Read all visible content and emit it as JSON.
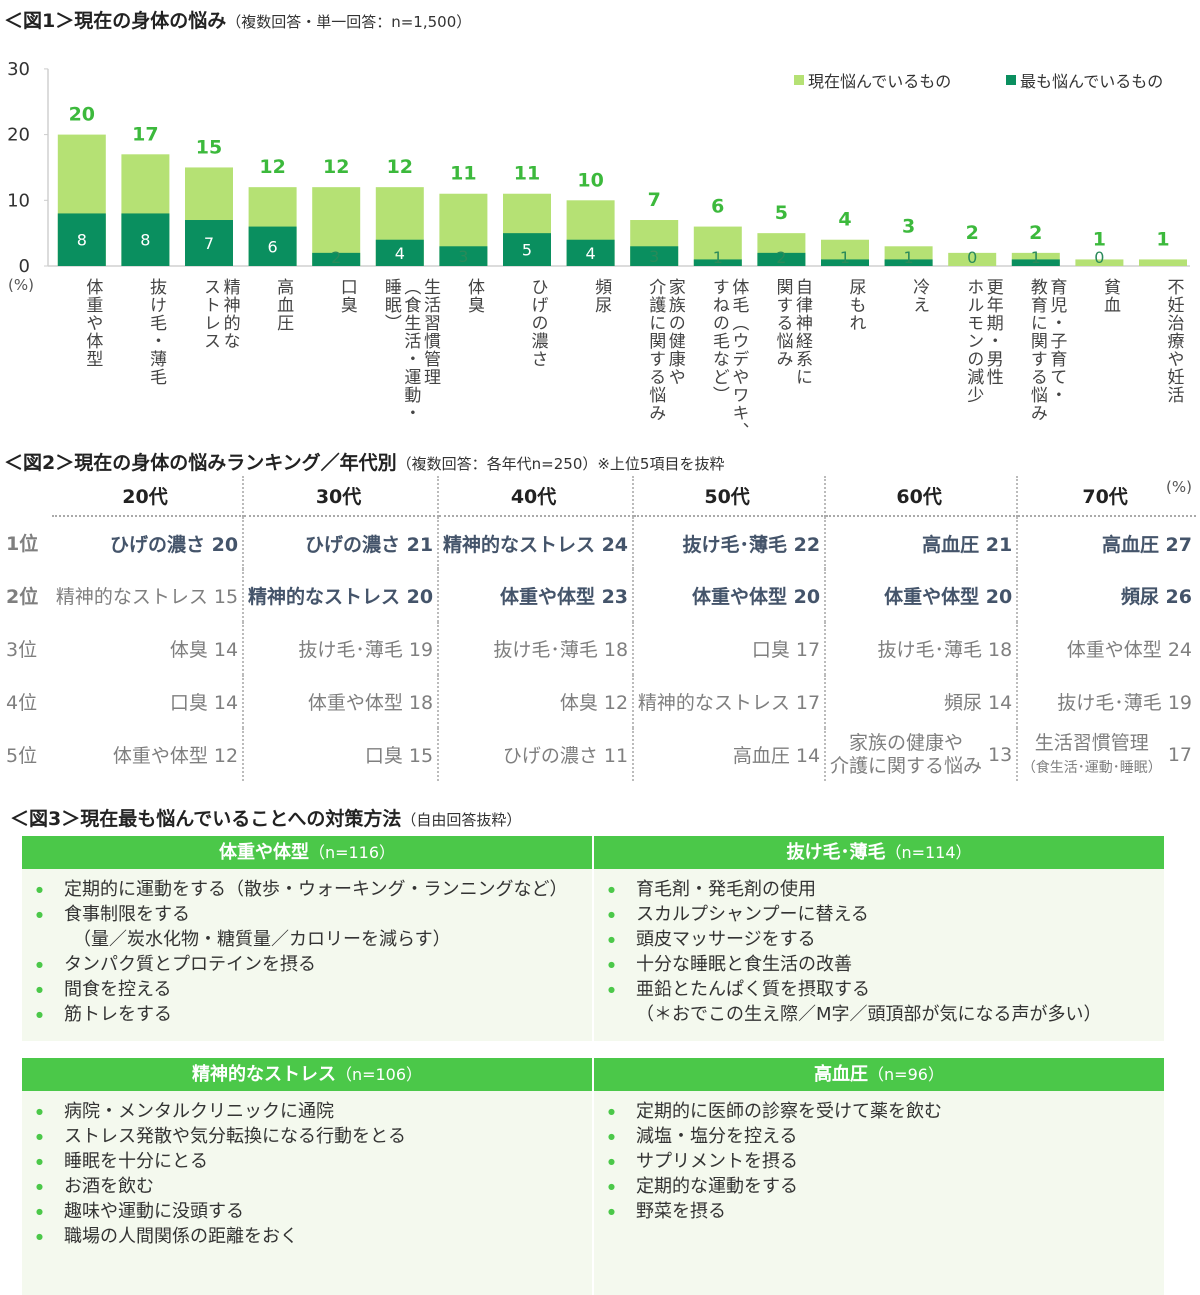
{
  "fig1": {
    "title": "＜図1＞現在の身体の悩み",
    "subtitle": "（複数回答・単一回答：n=1,500）"
  },
  "chart_data": {
    "type": "bar",
    "stacked_overlay": true,
    "ylim": [
      0,
      30
    ],
    "yticks": [
      "0",
      "10",
      "20",
      "30"
    ],
    "yunit": "(%)",
    "legend_position": "top-right",
    "categories": [
      "体重や体型",
      "抜け毛・薄毛",
      "精神的な\nストレス",
      "高血圧",
      "口臭",
      "生活習慣管理\n（食生活・運動・\n睡眠）",
      "体臭",
      "ひげの濃さ",
      "頻尿",
      "家族の健康や\n介護に関する悩み",
      "体毛（ウデやワキ、\nすねの毛など）",
      "自律神経系に\n関する悩み",
      "尿もれ",
      "冷え",
      "更年期・男性\nホルモンの減少",
      "育児・子育て・\n教育に関する悩み",
      "貧血",
      "不妊治療や妊活"
    ],
    "series": [
      {
        "name": "現在悩んでいるもの",
        "color": "#b5e174",
        "values": [
          20,
          17,
          15,
          12,
          12,
          12,
          11,
          11,
          10,
          7,
          6,
          5,
          4,
          3,
          2,
          2,
          1,
          1
        ],
        "labels": [
          "20",
          "17",
          "15",
          "12",
          "12",
          "12",
          "11",
          "11",
          "10",
          "7",
          "6",
          "5",
          "4",
          "3",
          "2",
          "2",
          "1",
          "1"
        ]
      },
      {
        "name": "最も悩んでいるもの",
        "color": "#0a8f5f",
        "values": [
          8,
          8,
          7,
          6,
          2,
          4,
          3,
          5,
          4,
          3,
          1,
          2,
          1,
          1,
          0,
          1,
          0,
          0
        ],
        "labels": [
          "8",
          "8",
          "7",
          "6",
          "2",
          "4",
          "3",
          "5",
          "4",
          "3",
          "1",
          "2",
          "1",
          "1",
          "0",
          "1",
          "0",
          ""
        ]
      }
    ]
  },
  "fig2": {
    "title": "＜図2＞現在の身体の悩みランキング／年代別",
    "subtitle": "（複数回答：各年代n=250）※上位5項目を抜粋",
    "unit": "(%)",
    "columns": [
      "20代",
      "30代",
      "40代",
      "50代",
      "60代",
      "70代"
    ],
    "ranks": [
      "1位",
      "2位",
      "3位",
      "4位",
      "5位"
    ],
    "rows": [
      [
        {
          "t": "ひげの濃さ 20",
          "b": true
        },
        {
          "t": "ひげの濃さ 21",
          "b": true
        },
        {
          "t": "精神的なストレス 24",
          "b": true
        },
        {
          "t": "抜け毛･薄毛 22",
          "b": true
        },
        {
          "t": "高血圧 21",
          "b": true
        },
        {
          "t": "高血圧 27",
          "b": true
        }
      ],
      [
        {
          "t": "精神的なストレス 15",
          "b": false
        },
        {
          "t": "精神的なストレス 20",
          "b": true
        },
        {
          "t": "体重や体型 23",
          "b": true
        },
        {
          "t": "体重や体型 20",
          "b": true
        },
        {
          "t": "体重や体型 20",
          "b": true
        },
        {
          "t": "頻尿 26",
          "b": true
        }
      ],
      [
        {
          "t": "体臭 14"
        },
        {
          "t": "抜け毛･薄毛 19"
        },
        {
          "t": "抜け毛･薄毛 18"
        },
        {
          "t": "口臭 17"
        },
        {
          "t": "抜け毛･薄毛 18"
        },
        {
          "t": "体重や体型 24"
        }
      ],
      [
        {
          "t": "口臭 14"
        },
        {
          "t": "体重や体型 18"
        },
        {
          "t": "体臭 12"
        },
        {
          "t": "精神的なストレス 17"
        },
        {
          "t": "頻尿 14"
        },
        {
          "t": "抜け毛･薄毛 19"
        }
      ],
      [
        {
          "t": "体重や体型 12"
        },
        {
          "t": "口臭 15"
        },
        {
          "t": "ひげの濃さ 11"
        },
        {
          "t": "高血圧 14"
        },
        {
          "l1": "家族の健康や",
          "l2": "介護に関する悩み",
          "v": "13"
        },
        {
          "l1": "生活習慣管理",
          "l2": "（食生活･運動･睡眠）",
          "v": "17"
        }
      ]
    ]
  },
  "fig3": {
    "title": "＜図3＞現在最も悩んでいることへの対策方法",
    "subtitle": "（自由回答抜粋）",
    "boxes": [
      {
        "label": "体重や体型",
        "n": "（n=116）",
        "items": [
          "定期的に運動をする（散歩・ウォーキング・ランニングなど）",
          "食事制限をする",
          "　（量／炭水化物・糖質量／カロリーを減らす）",
          "タンパク質とプロテインを摂る",
          "間食を控える",
          "筋トレをする"
        ]
      },
      {
        "label": "抜け毛･薄毛",
        "n": "（n=114）",
        "items": [
          "育毛剤・発毛剤の使用",
          "スカルプシャンプーに替える",
          "頭皮マッサージをする",
          "十分な睡眠と食生活の改善",
          "亜鉛とたんぱく質を摂取する",
          "（＊おでこの生え際／M字／頭頂部が気になる声が多い）"
        ]
      },
      {
        "label": "精神的なストレス",
        "n": "（n=106）",
        "items": [
          "病院・メンタルクリニックに通院",
          "ストレス発散や気分転換になる行動をとる",
          "睡眠を十分にとる",
          "お酒を飲む",
          "趣味や運動に没頭する",
          "職場の人間関係の距離をおく"
        ]
      },
      {
        "label": "高血圧",
        "n": "（n=96）",
        "items": [
          "定期的に医師の診察を受けて薬を飲む",
          "減塩・塩分を控える",
          "サプリメントを摂る",
          "定期的な運動をする",
          "野菜を摂る"
        ]
      }
    ]
  }
}
